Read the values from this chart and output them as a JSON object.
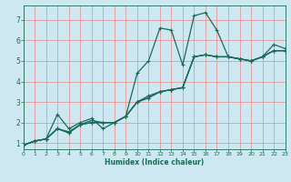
{
  "title": "",
  "xlabel": "Humidex (Indice chaleur)",
  "bg_color": "#cde8f0",
  "grid_color": "#e88888",
  "line_color": "#1a6b5a",
  "xlim": [
    0,
    23
  ],
  "ylim": [
    0.7,
    7.7
  ],
  "xticks": [
    0,
    1,
    2,
    3,
    4,
    5,
    6,
    7,
    8,
    9,
    10,
    11,
    12,
    13,
    14,
    15,
    16,
    17,
    18,
    19,
    20,
    21,
    22,
    23
  ],
  "yticks": [
    1,
    2,
    3,
    4,
    5,
    6,
    7
  ],
  "line_jagged": {
    "x": [
      0,
      1,
      2,
      3,
      4,
      5,
      6,
      7,
      8,
      9,
      10,
      11,
      12,
      13,
      14,
      15,
      16,
      17,
      18,
      19,
      20,
      21,
      22,
      23
    ],
    "y": [
      0.9,
      1.1,
      1.2,
      1.7,
      1.55,
      1.9,
      2.0,
      2.0,
      2.0,
      2.3,
      4.4,
      5.0,
      6.6,
      6.5,
      4.8,
      7.2,
      7.35,
      6.5,
      5.2,
      5.1,
      5.0,
      5.2,
      5.8,
      5.6
    ]
  },
  "line_trend1": {
    "x": [
      0,
      1,
      2,
      3,
      4,
      5,
      6,
      7,
      8,
      9,
      10,
      11,
      12,
      13,
      14,
      15,
      16,
      17,
      18,
      19,
      20,
      21,
      22,
      23
    ],
    "y": [
      0.9,
      1.1,
      1.2,
      2.4,
      1.7,
      2.0,
      2.2,
      1.7,
      2.0,
      2.3,
      3.0,
      3.3,
      3.5,
      3.6,
      3.7,
      5.2,
      5.3,
      5.2,
      5.2,
      5.1,
      5.0,
      5.2,
      5.5,
      5.5
    ]
  },
  "line_trend2": {
    "x": [
      0,
      1,
      2,
      3,
      4,
      5,
      6,
      7,
      8,
      9,
      10,
      11,
      12,
      13,
      14,
      15,
      16,
      17,
      18,
      19,
      20,
      21,
      22,
      23
    ],
    "y": [
      0.9,
      1.1,
      1.2,
      1.7,
      1.5,
      1.9,
      2.1,
      2.0,
      2.0,
      2.3,
      3.0,
      3.2,
      3.5,
      3.6,
      3.7,
      5.2,
      5.3,
      5.2,
      5.2,
      5.1,
      5.0,
      5.2,
      5.5,
      5.5
    ]
  },
  "line_trend3": {
    "x": [
      0,
      1,
      2,
      3,
      4,
      5,
      6,
      7,
      8,
      9,
      10,
      11,
      12,
      13,
      14,
      15,
      16,
      17,
      18,
      19,
      20,
      21,
      22,
      23
    ],
    "y": [
      0.9,
      1.1,
      1.2,
      1.7,
      1.5,
      1.9,
      2.0,
      2.0,
      2.0,
      2.3,
      3.0,
      3.2,
      3.5,
      3.6,
      3.7,
      5.2,
      5.3,
      5.2,
      5.2,
      5.1,
      5.0,
      5.2,
      5.5,
      5.5
    ]
  }
}
